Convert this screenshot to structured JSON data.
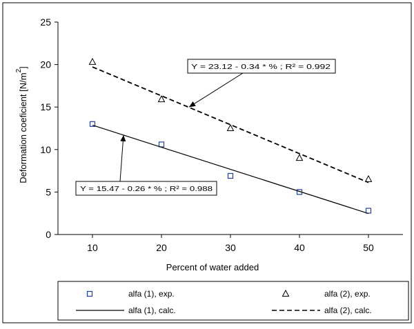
{
  "chart_data": {
    "type": "scatter",
    "xlabel": "Percent of water added",
    "ylabel": "Deformation coeficient [N/m",
    "ylabel_superscript": "2",
    "ylabel_close": "]",
    "xlim": [
      5,
      55
    ],
    "ylim": [
      0,
      25
    ],
    "x_ticks": [
      10,
      20,
      30,
      40,
      50
    ],
    "y_ticks": [
      0,
      5,
      10,
      15,
      20,
      25
    ],
    "grid": false,
    "legend_position": "bottom",
    "series": [
      {
        "name": "alfa (1), exp.",
        "kind": "points",
        "marker": "square",
        "color": "#1f3f9f",
        "x": [
          10,
          20,
          30,
          40,
          50
        ],
        "y": [
          13.0,
          10.6,
          6.9,
          5.0,
          2.8
        ]
      },
      {
        "name": "alfa (2), exp.",
        "kind": "points",
        "marker": "triangle",
        "color": "#000000",
        "x": [
          10,
          20,
          30,
          40,
          50
        ],
        "y": [
          20.3,
          15.9,
          12.5,
          9.0,
          6.5
        ]
      },
      {
        "name": "alfa (1), calc.",
        "kind": "line",
        "dash": "solid",
        "color": "#000000",
        "x": [
          10,
          50
        ],
        "y": [
          12.87,
          2.47
        ]
      },
      {
        "name": "alfa (2), calc.",
        "kind": "line",
        "dash": "dashed",
        "color": "#000000",
        "x": [
          10,
          50
        ],
        "y": [
          19.72,
          6.12
        ]
      }
    ],
    "annotations": [
      {
        "text": "Y = 23.12 - 0.34 * % ; R² = 0.992",
        "points_to": [
          24,
          15.0
        ]
      },
      {
        "text": "Y = 15.47 - 0.26 * % ; R² = 0.988",
        "points_to": [
          14.5,
          11.7
        ]
      }
    ]
  }
}
